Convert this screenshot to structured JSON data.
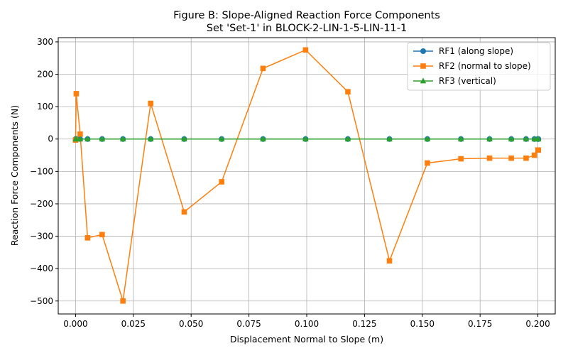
{
  "chart_data": {
    "type": "line",
    "title": "Figure B: Slope-Aligned Reaction Force Components",
    "subtitle": "Set 'Set-1' in BLOCK-2-LIN-1-5-LIN-11-1",
    "xlabel": "Displacement Normal to Slope (m)",
    "ylabel": "Reaction Force Components (N)",
    "xlim": [
      -0.0075,
      0.2075
    ],
    "ylim": [
      -540,
      313
    ],
    "xticks": [
      0.0,
      0.025,
      0.05,
      0.075,
      0.1,
      0.125,
      0.15,
      0.175,
      0.2
    ],
    "xtick_labels": [
      "0.000",
      "0.025",
      "0.050",
      "0.075",
      "0.100",
      "0.125",
      "0.150",
      "0.175",
      "0.200"
    ],
    "yticks": [
      -500,
      -400,
      -300,
      -200,
      -100,
      0,
      100,
      200,
      300
    ],
    "ytick_labels": [
      "−500",
      "−400",
      "−300",
      "−200",
      "−100",
      "0",
      "100",
      "200",
      "300"
    ],
    "grid": true,
    "legend_position": "top-right",
    "x": [
      0.0,
      0.0003,
      0.002,
      0.0052,
      0.0115,
      0.0205,
      0.0325,
      0.047,
      0.0632,
      0.0811,
      0.0995,
      0.1178,
      0.1358,
      0.1522,
      0.1667,
      0.1791,
      0.1885,
      0.1949,
      0.1985,
      0.2,
      0.2002
    ],
    "series": [
      {
        "name": "RF1 (along slope)",
        "color": "#1f77b4",
        "marker": "circle",
        "values": [
          0,
          0,
          0,
          0,
          0,
          0,
          0,
          0,
          0,
          0,
          0,
          0,
          0,
          0,
          0,
          0,
          0,
          0,
          0,
          0,
          0
        ]
      },
      {
        "name": "RF2 (normal to slope)",
        "color": "#ff7f0e",
        "marker": "square",
        "values": [
          -3,
          140,
          15,
          -305,
          -295,
          -500,
          110,
          -225,
          -132,
          218,
          275,
          146,
          -376,
          -74,
          -61,
          -59,
          -59,
          -59,
          -50,
          -34,
          -34
        ]
      },
      {
        "name": "RF3 (vertical)",
        "color": "#2ca02c",
        "marker": "triangle",
        "values": [
          0,
          0,
          0,
          0,
          0,
          0,
          0,
          0,
          0,
          0,
          0,
          0,
          0,
          0,
          0,
          0,
          0,
          0,
          0,
          0,
          0
        ]
      }
    ]
  }
}
